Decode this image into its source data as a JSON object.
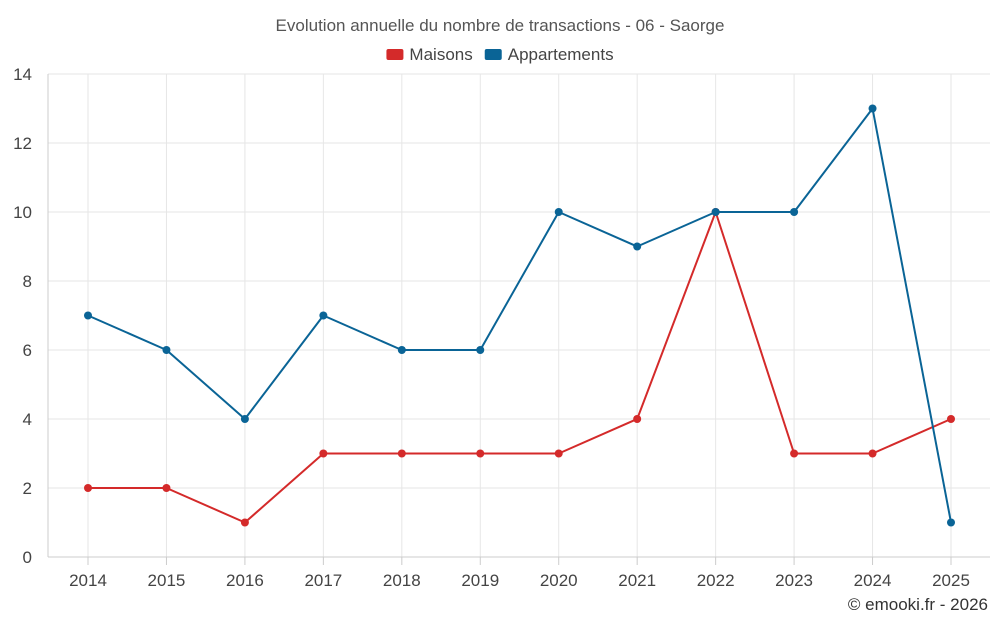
{
  "chart_data": {
    "type": "line",
    "title": "Evolution annuelle du nombre de transactions - 06 - Saorge",
    "categories": [
      "2014",
      "2015",
      "2016",
      "2017",
      "2018",
      "2019",
      "2020",
      "2021",
      "2022",
      "2023",
      "2024",
      "2025"
    ],
    "series": [
      {
        "name": "Maisons",
        "color": "#d42a2a",
        "values": [
          2,
          2,
          1,
          3,
          3,
          3,
          3,
          4,
          10,
          3,
          3,
          4
        ]
      },
      {
        "name": "Appartements",
        "color": "#0a6496",
        "values": [
          7,
          6,
          4,
          7,
          6,
          6,
          10,
          9,
          10,
          10,
          13,
          1
        ]
      }
    ],
    "ylim": [
      0,
      14
    ],
    "yticks": [
      0,
      2,
      4,
      6,
      8,
      10,
      12,
      14
    ],
    "xlabel": "",
    "ylabel": "",
    "grid": true,
    "legend_position": "top-center"
  },
  "credit": "© emooki.fr - 2026"
}
